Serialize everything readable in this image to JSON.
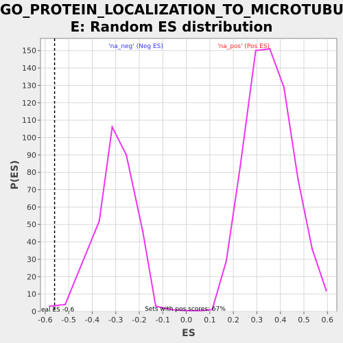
{
  "chart_data": {
    "type": "line",
    "title_line1": "GO_PROTEIN_LOCALIZATION_TO_MICROTUBUL",
    "title_line2": "E: Random ES distribution",
    "xlabel": "ES",
    "ylabel": "P(ES)",
    "xlim": [
      -0.62,
      0.64
    ],
    "ylim": [
      0,
      157
    ],
    "xticks": [
      -0.6,
      -0.5,
      -0.4,
      -0.3,
      -0.2,
      -0.1,
      0.0,
      0.1,
      0.2,
      0.3,
      0.4,
      0.5,
      0.6
    ],
    "xtick_labels": [
      "-0.6",
      "-0.5",
      "-0.4",
      "-0.3",
      "-0.2",
      "-0.1",
      "0.0",
      "0.1",
      "0.2",
      "0.3",
      "0.4",
      "0.5",
      "0.6"
    ],
    "yticks": [
      0,
      10,
      20,
      30,
      40,
      50,
      60,
      70,
      80,
      90,
      100,
      110,
      120,
      130,
      140,
      150
    ],
    "ytick_labels": [
      "0",
      "10",
      "20",
      "30",
      "40",
      "50",
      "60",
      "70",
      "80",
      "90",
      "100",
      "110",
      "120",
      "130",
      "140",
      "150"
    ],
    "grid": true,
    "series": [
      {
        "color": "#ee33ee",
        "x": [
          -0.58,
          -0.515,
          -0.37,
          -0.315,
          -0.255,
          -0.185,
          -0.13,
          -0.06,
          0.0,
          0.06,
          0.11,
          0.17,
          0.23,
          0.295,
          0.355,
          0.415,
          0.475,
          0.535,
          0.595
        ],
        "y": [
          3,
          4,
          52,
          106,
          90,
          46,
          3,
          1,
          0.5,
          0.5,
          1,
          29,
          84,
          150,
          151,
          129,
          76,
          36,
          12
        ]
      }
    ],
    "real_es_label": "eal ES -0.6",
    "real_es_x": -0.56,
    "legend_neg": "'na_neg' (Neg ES)",
    "legend_pos": "'na_pos' (Pos ES)",
    "legend_neg_color": "#3333ff",
    "legend_pos_color": "#ff2222",
    "pos_score_note": "Sets with pos scores: 67%"
  }
}
